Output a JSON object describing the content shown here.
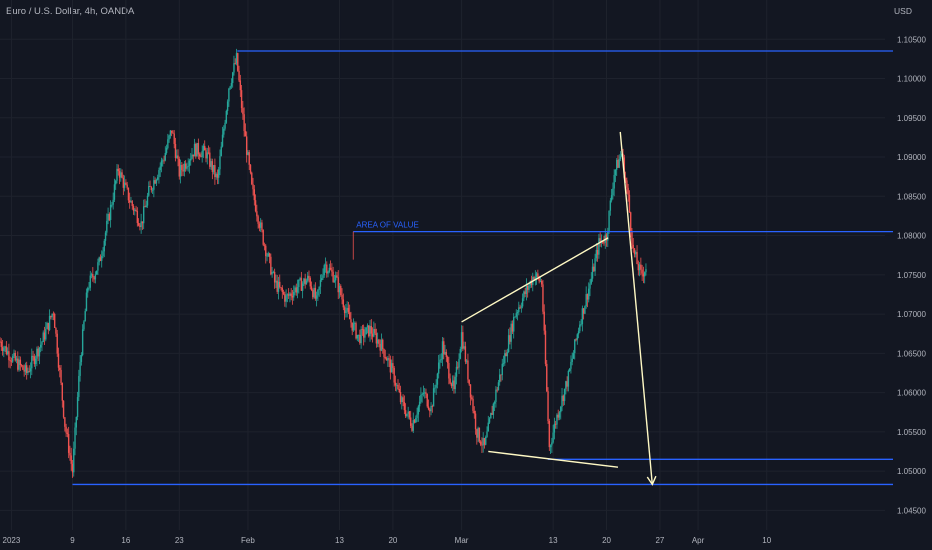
{
  "chart_data": {
    "type": "candlestick",
    "title": "Euro / U.S. Dollar, 4h, OANDA",
    "currency": "USD",
    "y_ticks": [
      "1.10500",
      "1.10000",
      "1.09500",
      "1.09000",
      "1.08500",
      "1.08000",
      "1.07500",
      "1.07000",
      "1.06500",
      "1.06000",
      "1.05500",
      "1.05000",
      "1.04500"
    ],
    "ylim": [
      1.0425,
      1.11
    ],
    "x_ticks": [
      "2023",
      "9",
      "16",
      "23",
      "Feb",
      "13",
      "20",
      "Mar",
      "13",
      "20",
      "27",
      "Apr",
      "10"
    ],
    "x_tick_days": [
      0,
      8,
      15,
      22,
      31,
      43,
      50,
      59,
      71,
      78,
      85,
      90,
      99
    ],
    "xlim": [
      -1.5,
      114.5
    ],
    "colors": {
      "up": "#26a69a",
      "down": "#ef5350",
      "level": "#2962ff",
      "trend": "#fff9c4",
      "grid": "#1e222d",
      "background": "#131722"
    },
    "path": [
      [
        -1.5,
        1.0665
      ],
      [
        0,
        1.0645
      ],
      [
        2,
        1.0625
      ],
      [
        4,
        1.0665
      ],
      [
        5.5,
        1.0705
      ],
      [
        7,
        1.056
      ],
      [
        8,
        1.05
      ],
      [
        9,
        1.064
      ],
      [
        10,
        1.0735
      ],
      [
        11.5,
        1.0765
      ],
      [
        13,
        1.0835
      ],
      [
        14,
        1.0885
      ],
      [
        15.5,
        1.0845
      ],
      [
        17,
        1.0815
      ],
      [
        18,
        1.0855
      ],
      [
        20,
        1.09
      ],
      [
        21,
        1.0935
      ],
      [
        22,
        1.088
      ],
      [
        24,
        1.091
      ],
      [
        25.5,
        1.0905
      ],
      [
        27,
        1.087
      ],
      [
        28.5,
        1.099
      ],
      [
        29.5,
        1.1025
      ],
      [
        30.5,
        1.0935
      ],
      [
        31.5,
        1.086
      ],
      [
        33,
        1.0795
      ],
      [
        34.5,
        1.074
      ],
      [
        36,
        1.072
      ],
      [
        37.5,
        1.0735
      ],
      [
        39,
        1.0745
      ],
      [
        40,
        1.0715
      ],
      [
        41,
        1.0765
      ],
      [
        42.5,
        1.0745
      ],
      [
        44,
        1.07
      ],
      [
        45.5,
        1.067
      ],
      [
        47,
        1.068
      ],
      [
        48.5,
        1.066
      ],
      [
        50,
        1.0625
      ],
      [
        51,
        1.059
      ],
      [
        52.5,
        1.056
      ],
      [
        54,
        1.06
      ],
      [
        55,
        1.058
      ],
      [
        56.5,
        1.066
      ],
      [
        58,
        1.06
      ],
      [
        59,
        1.0675
      ],
      [
        61,
        1.055
      ],
      [
        62,
        1.053
      ],
      [
        63.5,
        1.06
      ],
      [
        65,
        1.066
      ],
      [
        66,
        1.07
      ],
      [
        67.5,
        1.073
      ],
      [
        68.5,
        1.075
      ],
      [
        69.5,
        1.074
      ],
      [
        70.5,
        1.053
      ],
      [
        71.5,
        1.057
      ],
      [
        73,
        1.062
      ],
      [
        74.5,
        1.069
      ],
      [
        76,
        1.0745
      ],
      [
        77,
        1.079
      ],
      [
        78,
        1.08
      ],
      [
        79,
        1.088
      ],
      [
        80,
        1.0905
      ],
      [
        80.8,
        1.085
      ],
      [
        81.5,
        1.078
      ],
      [
        82.5,
        1.075
      ],
      [
        83.2,
        1.076
      ]
    ],
    "levels": [
      {
        "y": 1.1035,
        "x_start": 29.6
      },
      {
        "y": 1.0805,
        "x_start": 44.8,
        "label": "AREA OF VALUE"
      },
      {
        "y": 1.0515,
        "x_start": 70.3
      },
      {
        "y": 1.0483,
        "x_start": 8.0
      }
    ],
    "trendlines": [
      [
        [
          59.0,
          1.069
        ],
        [
          78.2,
          1.0797
        ]
      ],
      [
        [
          62.5,
          1.0525
        ],
        [
          79.5,
          1.0505
        ]
      ]
    ],
    "arrow": {
      "from": [
        79.8,
        1.0932
      ],
      "to": [
        84.0,
        1.0483
      ]
    }
  }
}
